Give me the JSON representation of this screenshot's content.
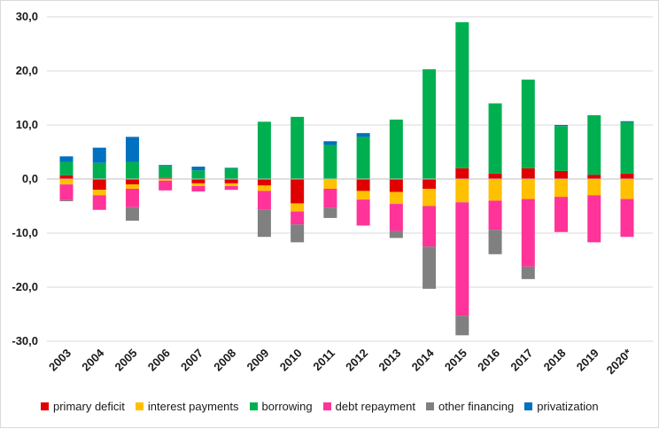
{
  "chart_data": {
    "type": "bar",
    "stacked": true,
    "categories": [
      "2003",
      "2004",
      "2005",
      "2006",
      "2007",
      "2008",
      "2009",
      "2010",
      "2011",
      "2012",
      "2013",
      "2014",
      "2015",
      "2016",
      "2017",
      "2018",
      "2019",
      "2020*"
    ],
    "ylim": [
      -30,
      30
    ],
    "yticks": [
      -30,
      -20,
      -10,
      0,
      10,
      20,
      30
    ],
    "ytick_labels": [
      "-30,0",
      "-20,0",
      "-10,0",
      "0,0",
      "10,0",
      "20,0",
      "30,0"
    ],
    "grid": true,
    "legend_position": "bottom",
    "series": [
      {
        "name": "primary deficit",
        "color": "#e00000",
        "values": [
          0.7,
          -2.0,
          -1.0,
          0.2,
          -0.8,
          -0.8,
          -1.2,
          -4.5,
          0.0,
          -2.2,
          -2.4,
          -1.8,
          2.0,
          1.0,
          2.0,
          1.5,
          0.8,
          1.0
        ]
      },
      {
        "name": "interest payments",
        "color": "#ffc000",
        "values": [
          -1.0,
          -1.0,
          -0.8,
          -0.3,
          -0.5,
          -0.5,
          -1.0,
          -1.5,
          -1.8,
          -1.6,
          -2.2,
          -3.2,
          -4.3,
          -4.0,
          -3.7,
          -3.3,
          -3.0,
          -3.7
        ]
      },
      {
        "name": "borrowing",
        "color": "#00b050",
        "values": [
          2.5,
          3.0,
          3.2,
          2.2,
          1.6,
          2.0,
          10.6,
          11.5,
          6.3,
          7.8,
          11.0,
          20.3,
          27.0,
          13.0,
          16.4,
          8.3,
          11.0,
          9.5
        ]
      },
      {
        "name": "debt repayment",
        "color": "#ff3399",
        "values": [
          -2.9,
          -2.7,
          -3.4,
          -1.8,
          -1.0,
          -0.7,
          -3.5,
          -2.4,
          -3.5,
          -4.8,
          -5.0,
          -7.5,
          -21.0,
          -5.4,
          -12.5,
          -6.5,
          -8.7,
          -7.0
        ]
      },
      {
        "name": "other financing",
        "color": "#808080",
        "values": [
          -0.2,
          0.0,
          -2.5,
          0.0,
          0.0,
          0.0,
          -5.0,
          -3.3,
          -1.9,
          0.0,
          -1.3,
          -7.8,
          -3.6,
          -4.5,
          -2.3,
          0.0,
          0.0,
          0.0
        ]
      },
      {
        "name": "privatization",
        "color": "#0070c0",
        "values": [
          1.0,
          2.8,
          4.6,
          0.2,
          0.7,
          0.1,
          0.0,
          0.0,
          0.7,
          0.7,
          0.0,
          0.0,
          0.0,
          0.0,
          0.0,
          0.2,
          0.0,
          0.2
        ]
      }
    ]
  }
}
